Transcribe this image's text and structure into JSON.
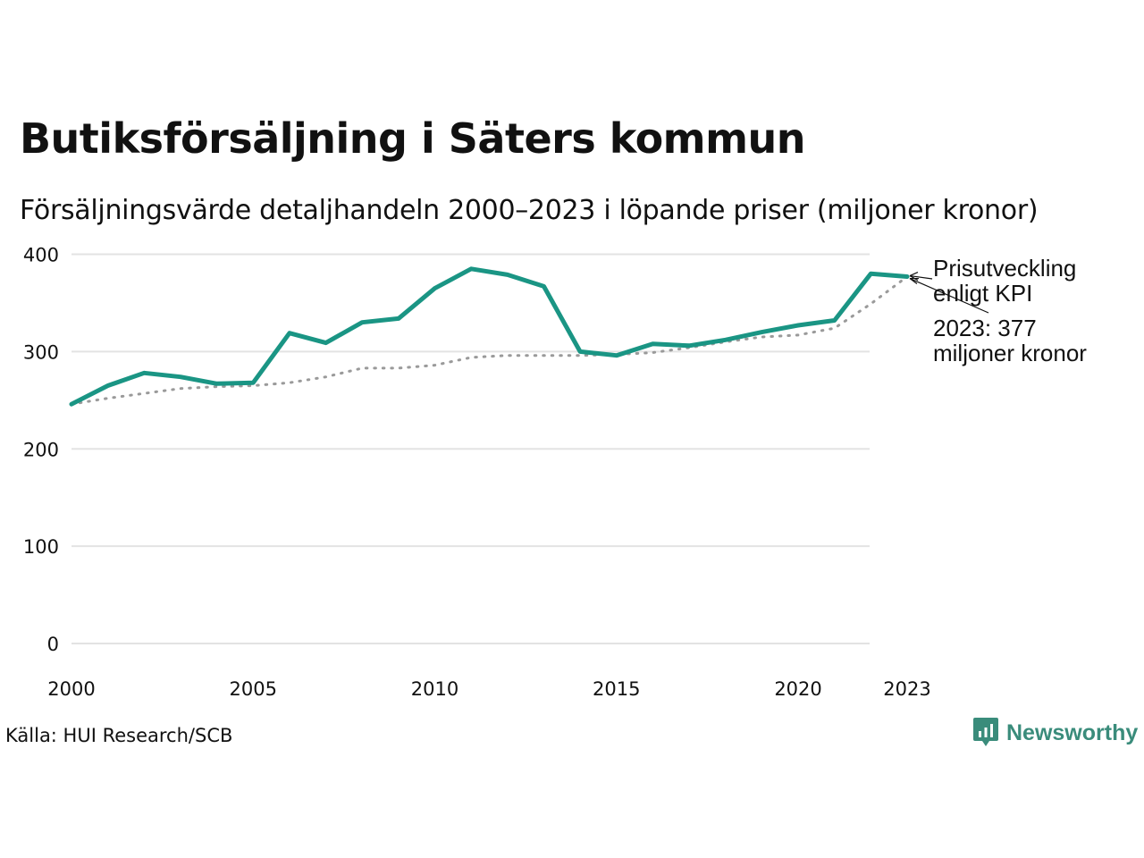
{
  "header": {
    "title": "Butiksförsäljning i Säters kommun",
    "subtitle": "Försäljningsvärde detaljhandeln 2000–2023 i löpande priser (miljoner kronor)"
  },
  "footer": {
    "source": "Källa: HUI Research/SCB",
    "brand": "Newsworthy"
  },
  "colors": {
    "series_main": "#1a9584",
    "series_kpi": "#9a9a9a",
    "grid": "#e3e3e3",
    "brand": "#3a8c7b"
  },
  "chart_data": {
    "type": "line",
    "title": "Butiksförsäljning i Säters kommun",
    "subtitle": "Försäljningsvärde detaljhandeln 2000–2023 i löpande priser (miljoner kronor)",
    "xlabel": "",
    "ylabel": "",
    "x": [
      2000,
      2001,
      2002,
      2003,
      2004,
      2005,
      2006,
      2007,
      2008,
      2009,
      2010,
      2011,
      2012,
      2013,
      2014,
      2015,
      2016,
      2017,
      2018,
      2019,
      2020,
      2021,
      2022,
      2023
    ],
    "xlim": [
      2000,
      2023
    ],
    "ylim": [
      0,
      400
    ],
    "grid": true,
    "x_ticks": [
      "2000",
      "2005",
      "2010",
      "2015",
      "2020",
      "2023"
    ],
    "y_ticks": [
      "0",
      "100",
      "200",
      "300",
      "400"
    ],
    "series": [
      {
        "name": "Försäljningsvärde",
        "style": "solid",
        "values": [
          246,
          265,
          278,
          274,
          267,
          268,
          319,
          309,
          330,
          334,
          365,
          385,
          379,
          367,
          300,
          296,
          308,
          306,
          312,
          320,
          327,
          332,
          380,
          377
        ]
      },
      {
        "name": "Prisutveckling enligt KPI",
        "style": "dotted",
        "values": [
          246,
          252,
          257,
          262,
          264,
          265,
          268,
          274,
          283,
          283,
          286,
          294,
          296,
          296,
          296,
          297,
          299,
          304,
          310,
          315,
          317,
          324,
          349,
          377
        ]
      }
    ],
    "annotations": [
      {
        "label": "Prisutveckling",
        "label2": "enligt KPI",
        "target_series": "Prisutveckling enligt KPI",
        "x": 2023
      },
      {
        "label": "2023: 377",
        "label2": "miljoner kronor",
        "target_series": "Försäljningsvärde",
        "x": 2023
      }
    ]
  }
}
